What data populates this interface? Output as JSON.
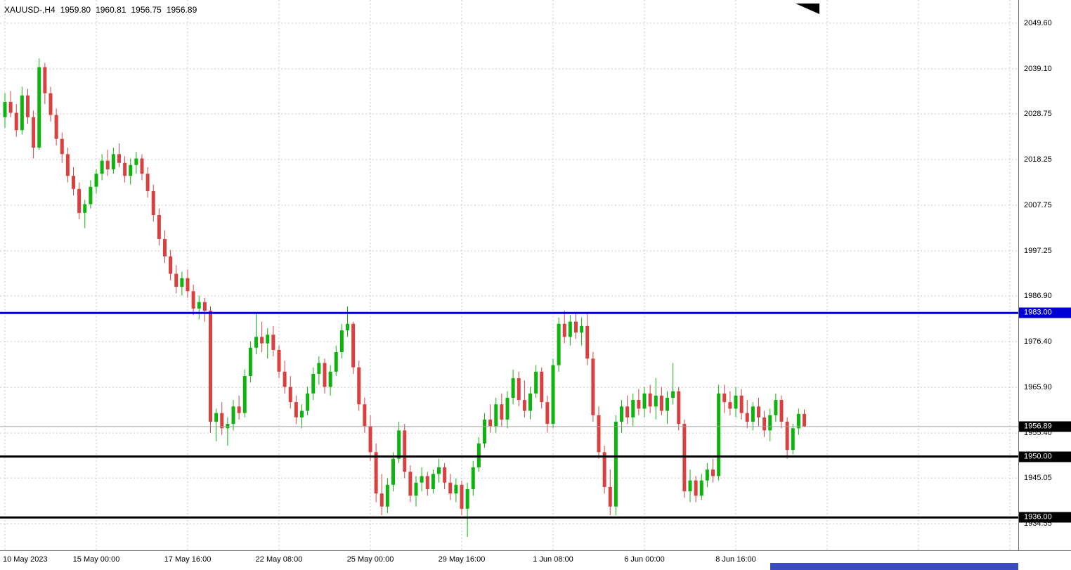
{
  "title": {
    "symbol_period": "XAUUSD-,H4",
    "open": "1959.80",
    "high": "1960.81",
    "low": "1956.75",
    "close": "1956.89"
  },
  "colors": {
    "background": "#ffffff",
    "up": "#0eb30e",
    "down": "#d94040",
    "grid": "#c9c9c9",
    "axis_line": "#6e6e6e",
    "text": "#000000",
    "scrollbar": "#3b4cc0",
    "shift_marker": "#000000"
  },
  "chart_data": {
    "type": "candlestick",
    "symbol": "XAUUSD-",
    "timeframe": "H4",
    "ohlc_current": {
      "open": 1959.8,
      "high": 1960.81,
      "low": 1956.75,
      "close": 1956.89
    },
    "ylim": [
      1928.44,
      2054.93
    ],
    "grid": true,
    "y_ticks": [
      "2049.60",
      "2039.10",
      "2028.75",
      "2018.25",
      "2007.75",
      "1997.25",
      "1986.90",
      "1976.40",
      "1965.90",
      "1955.40",
      "1945.05",
      "1934.55"
    ],
    "x_labels": [
      {
        "index": 0,
        "text": "10 May 2023"
      },
      {
        "index": 16,
        "text": "15 May 00:00"
      },
      {
        "index": 32,
        "text": "17 May 16:00"
      },
      {
        "index": 48,
        "text": "22 May 08:00"
      },
      {
        "index": 64,
        "text": "25 May 00:00"
      },
      {
        "index": 80,
        "text": "29 May 16:00"
      },
      {
        "index": 96,
        "text": "1 Jun 08:00"
      },
      {
        "index": 112,
        "text": "6 Jun 00:00"
      },
      {
        "index": 128,
        "text": "8 Jun 16:00"
      }
    ],
    "future_gridline_indices": [
      144,
      160,
      176
    ],
    "levels": [
      {
        "price": 1983.0,
        "label": "1983.00",
        "color": "#0000d4",
        "thickness": 3
      },
      {
        "price": 1950.0,
        "label": "1950.00",
        "color": "#000000",
        "thickness": 3
      },
      {
        "price": 1936.0,
        "label": "1936.00",
        "color": "#000000",
        "thickness": 3
      }
    ],
    "current_price": {
      "price": 1956.89,
      "label": "1956.89",
      "line_color": "#9e9e9e",
      "tag_color": "#000000"
    },
    "candles": [
      [
        2028,
        2033.5,
        2025.5,
        2031.5
      ],
      [
        2031.5,
        2034,
        2028,
        2029
      ],
      [
        2029,
        2031,
        2023.5,
        2025
      ],
      [
        2025,
        2035,
        2024,
        2033
      ],
      [
        2033,
        2034.5,
        2026.5,
        2028
      ],
      [
        2028,
        2029.5,
        2018.5,
        2021
      ],
      [
        2021,
        2041.5,
        2020.5,
        2039.5
      ],
      [
        2039.5,
        2040.5,
        2031,
        2033.5
      ],
      [
        2033.5,
        2035,
        2027,
        2028.5
      ],
      [
        2028.5,
        2030,
        2021.5,
        2023
      ],
      [
        2023,
        2024.5,
        2017.5,
        2019.5
      ],
      [
        2019.5,
        2021,
        2013,
        2014.5
      ],
      [
        2014.5,
        2016.5,
        2010,
        2011.5
      ],
      [
        2011.5,
        2013,
        2004.5,
        2006
      ],
      [
        2006,
        2009,
        2002.5,
        2008
      ],
      [
        2008,
        2013.5,
        2007,
        2012
      ],
      [
        2012,
        2016,
        2010.5,
        2015
      ],
      [
        2015,
        2019.5,
        2013.5,
        2018
      ],
      [
        2018,
        2020.5,
        2014.5,
        2016
      ],
      [
        2016,
        2021,
        2015,
        2019.5
      ],
      [
        2019.5,
        2022,
        2016.5,
        2017.5
      ],
      [
        2017.5,
        2019,
        2013,
        2014.5
      ],
      [
        2014.5,
        2018.5,
        2012.5,
        2017
      ],
      [
        2017,
        2020,
        2015,
        2018.5
      ],
      [
        2018.5,
        2019.5,
        2013.5,
        2015
      ],
      [
        2015,
        2016.5,
        2009.5,
        2011
      ],
      [
        2011,
        2012.5,
        2004,
        2005.5
      ],
      [
        2005.5,
        2007,
        1998.5,
        2000
      ],
      [
        2000,
        2002,
        1994.5,
        1996
      ],
      [
        1996,
        1997.5,
        1990.5,
        1992
      ],
      [
        1992,
        1994,
        1987.5,
        1989
      ],
      [
        1989,
        1992.5,
        1987,
        1991
      ],
      [
        1991,
        1993,
        1986.5,
        1988
      ],
      [
        1988,
        1989.5,
        1982.5,
        1984
      ],
      [
        1984,
        1987,
        1981.5,
        1985.5
      ],
      [
        1985.5,
        1986.5,
        1981,
        1983.5
      ],
      [
        1983.5,
        1984.5,
        1955.5,
        1958
      ],
      [
        1958,
        1961,
        1953.5,
        1960
      ],
      [
        1960,
        1962.5,
        1955,
        1956.5
      ],
      [
        1956.5,
        1959,
        1952.5,
        1957.5
      ],
      [
        1957.5,
        1963,
        1956,
        1961.5
      ],
      [
        1961.5,
        1964,
        1958.5,
        1960
      ],
      [
        1960,
        1970,
        1959,
        1968.5
      ],
      [
        1968.5,
        1976.5,
        1967,
        1975
      ],
      [
        1975,
        1983,
        1973.5,
        1977.5
      ],
      [
        1977.5,
        1981,
        1974,
        1976
      ],
      [
        1976,
        1979.5,
        1972.5,
        1978
      ],
      [
        1978,
        1980,
        1973,
        1974.5
      ],
      [
        1974.5,
        1975.5,
        1968,
        1969.5
      ],
      [
        1969.5,
        1972,
        1964.5,
        1966
      ],
      [
        1966,
        1968.5,
        1961,
        1962.5
      ],
      [
        1962.5,
        1964,
        1957.5,
        1959
      ],
      [
        1959,
        1962,
        1956.5,
        1960.5
      ],
      [
        1960.5,
        1966,
        1959.5,
        1964.5
      ],
      [
        1964.5,
        1970.5,
        1963,
        1969
      ],
      [
        1969,
        1973,
        1966.5,
        1971.5
      ],
      [
        1971.5,
        1972.5,
        1964.5,
        1966
      ],
      [
        1966,
        1971,
        1964,
        1969.5
      ],
      [
        1969.5,
        1975.5,
        1968.5,
        1974
      ],
      [
        1974,
        1980.5,
        1972.5,
        1979
      ],
      [
        1979,
        1984.5,
        1977.5,
        1980.5
      ],
      [
        1980.5,
        1981,
        1969,
        1970.5
      ],
      [
        1970.5,
        1972,
        1960.5,
        1962
      ],
      [
        1962,
        1963.5,
        1955.5,
        1957
      ],
      [
        1957,
        1959.5,
        1949,
        1951
      ],
      [
        1951,
        1953,
        1939.5,
        1941.5
      ],
      [
        1941.5,
        1946,
        1936.5,
        1938.5
      ],
      [
        1938.5,
        1945,
        1937,
        1943.5
      ],
      [
        1943.5,
        1951,
        1942,
        1949.5
      ],
      [
        1949.5,
        1958,
        1948.5,
        1956
      ],
      [
        1956,
        1957.5,
        1945,
        1946.5
      ],
      [
        1946.5,
        1948,
        1939.5,
        1941
      ],
      [
        1941,
        1945.5,
        1938.5,
        1944
      ],
      [
        1944,
        1947.5,
        1942,
        1945.5
      ],
      [
        1945.5,
        1946.5,
        1941,
        1942.5
      ],
      [
        1942.5,
        1947,
        1941.5,
        1946
      ],
      [
        1946,
        1949.5,
        1944,
        1947.5
      ],
      [
        1947.5,
        1948.5,
        1942.5,
        1944
      ],
      [
        1944,
        1946,
        1940,
        1941.5
      ],
      [
        1941.5,
        1945,
        1939.5,
        1943.5
      ],
      [
        1943.5,
        1944.5,
        1936.5,
        1938
      ],
      [
        1938,
        1944,
        1931.5,
        1942.5
      ],
      [
        1942.5,
        1949,
        1941,
        1947.5
      ],
      [
        1947.5,
        1954.5,
        1946.5,
        1953
      ],
      [
        1953,
        1960,
        1952,
        1958.5
      ],
      [
        1958.5,
        1962,
        1955.5,
        1957
      ],
      [
        1957,
        1963.5,
        1955.5,
        1962
      ],
      [
        1962,
        1964.5,
        1957,
        1958.5
      ],
      [
        1958.5,
        1965,
        1956.5,
        1963.5
      ],
      [
        1963.5,
        1970,
        1962,
        1968
      ],
      [
        1968,
        1969.5,
        1961.5,
        1963
      ],
      [
        1963,
        1967.5,
        1959,
        1960.5
      ],
      [
        1960.5,
        1966,
        1958.5,
        1964.5
      ],
      [
        1964.5,
        1971,
        1963.5,
        1969.5
      ],
      [
        1969.5,
        1970.5,
        1961,
        1962.5
      ],
      [
        1962.5,
        1964,
        1955.5,
        1957.5
      ],
      [
        1957.5,
        1972.5,
        1956.5,
        1971
      ],
      [
        1971,
        1982,
        1969.5,
        1980.5
      ],
      [
        1980.5,
        1983.5,
        1976,
        1977.5
      ],
      [
        1977.5,
        1982.5,
        1975.5,
        1981
      ],
      [
        1981,
        1983,
        1977,
        1978.5
      ],
      [
        1978.5,
        1982,
        1975.5,
        1980
      ],
      [
        1980,
        1983,
        1971,
        1972.5
      ],
      [
        1972.5,
        1974,
        1958,
        1959.5
      ],
      [
        1959.5,
        1961.5,
        1949.5,
        1951
      ],
      [
        1951,
        1952.5,
        1941.5,
        1943
      ],
      [
        1943,
        1947,
        1936.5,
        1938.5
      ],
      [
        1938.5,
        1959.5,
        1936.5,
        1958
      ],
      [
        1958,
        1963,
        1955.5,
        1961.5
      ],
      [
        1961.5,
        1964,
        1957.5,
        1959
      ],
      [
        1959,
        1964.5,
        1957,
        1963
      ],
      [
        1963,
        1965.5,
        1959.5,
        1961
      ],
      [
        1961,
        1966,
        1959,
        1964.5
      ],
      [
        1964.5,
        1966.5,
        1960,
        1961.5
      ],
      [
        1961.5,
        1968,
        1958.5,
        1964
      ],
      [
        1964,
        1966,
        1959.5,
        1960.5
      ],
      [
        1960.5,
        1965,
        1957.5,
        1963.5
      ],
      [
        1963.5,
        1971.5,
        1962,
        1965
      ],
      [
        1965,
        1966,
        1956,
        1957.5
      ],
      [
        1957.5,
        1958.5,
        1940.5,
        1942
      ],
      [
        1942,
        1947,
        1939.5,
        1944.5
      ],
      [
        1944.5,
        1945.5,
        1939.5,
        1941
      ],
      [
        1941,
        1946,
        1940,
        1944.5
      ],
      [
        1944.5,
        1948.5,
        1943,
        1947
      ],
      [
        1947,
        1949.5,
        1944,
        1945.5
      ],
      [
        1945.5,
        1966.5,
        1944.5,
        1964.5
      ],
      [
        1964.5,
        1966.5,
        1960,
        1962.5
      ],
      [
        1962.5,
        1965,
        1959.5,
        1961
      ],
      [
        1961,
        1966,
        1959,
        1964
      ],
      [
        1964,
        1965.5,
        1958.5,
        1960
      ],
      [
        1960,
        1963,
        1956.5,
        1958
      ],
      [
        1958,
        1962.5,
        1956,
        1961.5
      ],
      [
        1961.5,
        1963.5,
        1957,
        1959
      ],
      [
        1959,
        1960.5,
        1954.5,
        1956
      ],
      [
        1956,
        1961,
        1953.5,
        1959.5
      ],
      [
        1959.5,
        1964.5,
        1958,
        1963
      ],
      [
        1963,
        1964,
        1956.5,
        1958
      ],
      [
        1958,
        1959,
        1949.5,
        1951.5
      ],
      [
        1951.5,
        1957.5,
        1950.5,
        1956.5
      ],
      [
        1956.5,
        1961,
        1955,
        1959.8
      ],
      [
        1959.8,
        1960.81,
        1956.75,
        1956.89
      ]
    ]
  }
}
